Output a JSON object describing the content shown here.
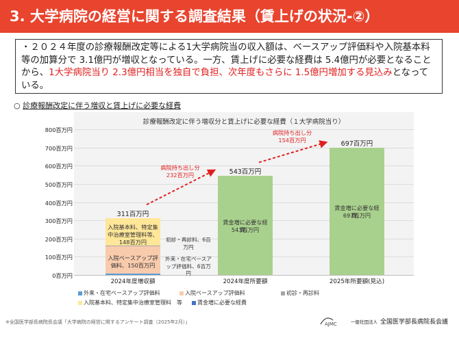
{
  "header": {
    "title": "3. 大学病院の経営に関する調査結果（賃上げの状況-②）"
  },
  "summary": {
    "part1": "・２０２４年度の診療報酬改定等による1大学病院当の収入額は、ベースアップ評価料や入院基本料等の加算分で 3.1億円が増収となっている。一方、賃上げに必要な経費は 5.4億円が必要となることから、",
    "highlight": "1大学病院当り 2.3億円相当を独自で負担、次年度もさらに 1.5億円増加する見込み",
    "part2": "となっている。"
  },
  "section_heading": {
    "prefix": "○",
    "label": "診療報酬改定に伴う増収と賃上げに必要な経費"
  },
  "chart_data": {
    "type": "bar",
    "title": "診療報酬改定に伴う増収分と賃上げに必要な経費（１大学病院当り）",
    "ylim": [
      0,
      800
    ],
    "yticks": [
      "0百万円",
      "100百万円",
      "200百万円",
      "300百万円",
      "400百万円",
      "500百万円",
      "600百万円",
      "700百万円",
      "800百万円"
    ],
    "categories": [
      "2024年度増収額",
      "2024年度所要額",
      "2025年所要額(見込)"
    ],
    "totals": [
      "311百万円",
      "543百万円",
      "697百万円"
    ],
    "series": [
      {
        "name": "外来・在宅ベースアップ評価料",
        "color": "#5b9bd5",
        "values": [
          6,
          0,
          0
        ],
        "label": "外来・在宅ベースアップ評価料、6百万円"
      },
      {
        "name": "入院ベースアップ評価料",
        "color": "#f8cbad",
        "values": [
          150,
          0,
          0
        ],
        "label": "入院ベースアップ評価料、150百万円"
      },
      {
        "name": "初診・再診料",
        "color": "#a5a5a5",
        "values": [
          6,
          0,
          0
        ],
        "label": "初診・再診料、6百万円"
      },
      {
        "name": "入院基本料、特定集中治療室管理料　等",
        "color": "#ffe699",
        "values": [
          148,
          0,
          0
        ],
        "label": "入院基本料、特定集中治療室管理料等、148百万円"
      },
      {
        "name": "賃金増に必要な経費",
        "color": "#a9d18e",
        "values": [
          0,
          543,
          697
        ],
        "label": "賃金増に必要な経費、"
      }
    ],
    "bar_value_labels": [
      "543百万円",
      "697百万円"
    ],
    "arrows": [
      {
        "from": 0,
        "to": 1,
        "label": "病院持ち出し分",
        "value": "232百万円"
      },
      {
        "from": 1,
        "to": 2,
        "label": "病院持ち出し分",
        "value": "154百万円"
      }
    ],
    "legend": "bottom"
  },
  "footer": {
    "source": "※全国医学部長病院長会議「大学病院の経営に関するアンケート調査（2025年2月）」",
    "org_prefix": "一般社団法人",
    "org_name": "全国医学部長病院長会議",
    "logo_text": "AJMC"
  }
}
